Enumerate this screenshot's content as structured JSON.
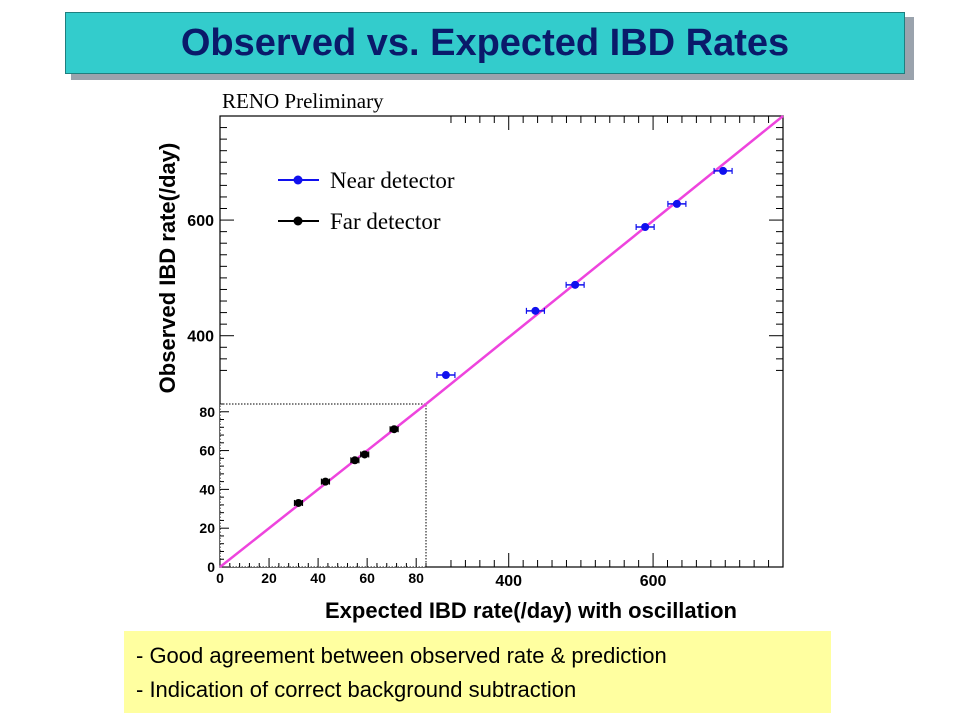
{
  "title": "Observed vs. Expected IBD Rates",
  "notes": [
    "- Good agreement between observed rate & prediction",
    "- Indication of correct background subtraction"
  ],
  "chart_data": {
    "type": "scatter",
    "annotation": "RENO Preliminary",
    "xlabel": "Expected IBD rate(/day) with oscillation",
    "ylabel": "Observed IBD rate(/day)",
    "main_axes": {
      "xlim": [
        0,
        780
      ],
      "ylim": [
        0,
        780
      ],
      "xticks": [
        400,
        600
      ],
      "yticks": [
        400,
        600
      ]
    },
    "inset_axes": {
      "xlim": [
        0,
        84
      ],
      "ylim": [
        0,
        84
      ],
      "xticks": [
        0,
        20,
        40,
        60,
        80
      ],
      "yticks": [
        0,
        20,
        40,
        60,
        80
      ]
    },
    "reference_line": {
      "slope": 1,
      "color": "#ee44dd"
    },
    "legend": {
      "placement": "top-left"
    },
    "series": [
      {
        "name": "Near detector",
        "color": "#1010ee",
        "axes": "main",
        "x": [
          313,
          437,
          492,
          589,
          633,
          697
        ],
        "y": [
          332,
          443,
          488,
          588,
          628,
          685
        ]
      },
      {
        "name": "Far detector",
        "color": "#000000",
        "axes": "inset",
        "x": [
          32,
          43,
          55,
          59,
          71
        ],
        "y": [
          33,
          44,
          55,
          58,
          71
        ]
      }
    ]
  }
}
